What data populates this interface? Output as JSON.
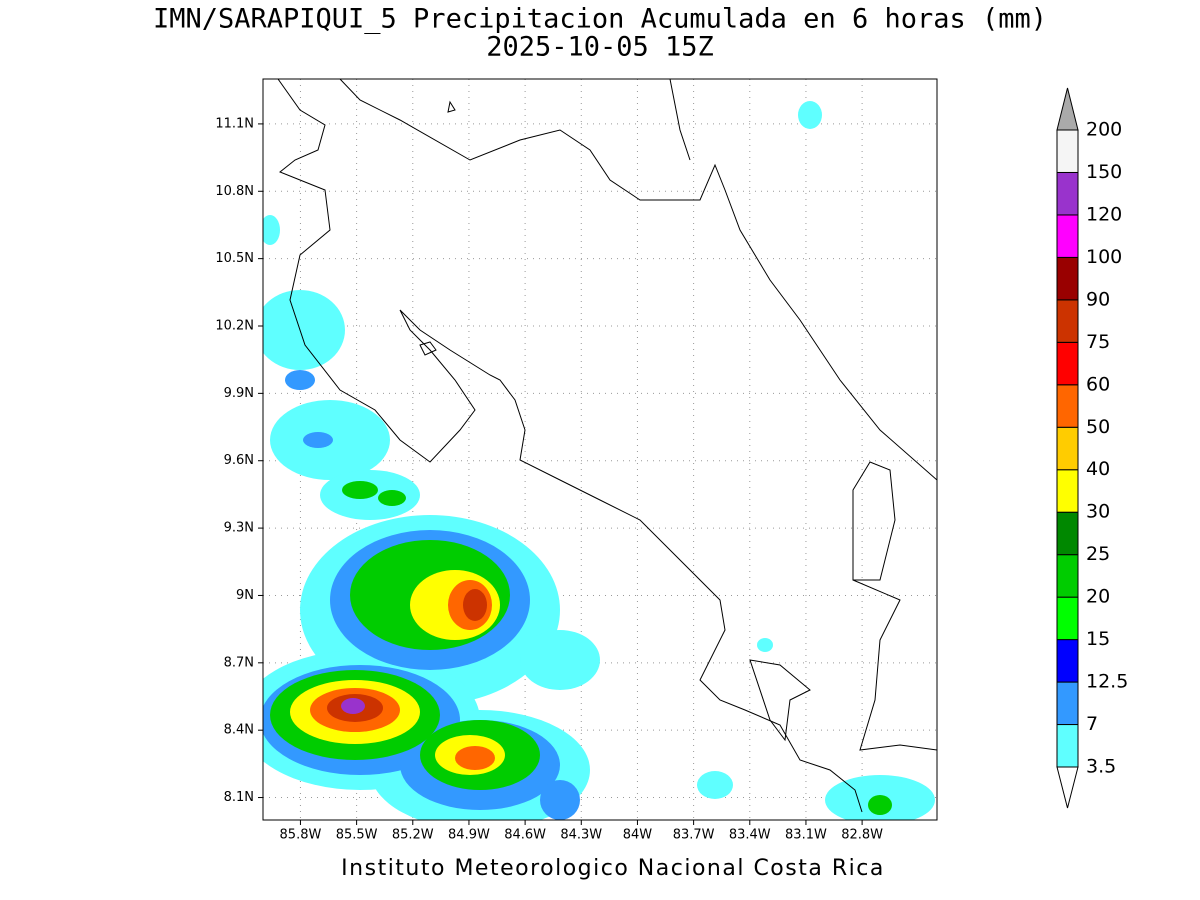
{
  "title": "IMN/SARAPIQUI_5 Precipitacion Acumulada en 6 horas (mm)",
  "subtitle": "2025-10-05 15Z",
  "footer": "Instituto Meteorologico Nacional Costa Rica",
  "map": {
    "xlim": [
      -86.0,
      -82.4
    ],
    "ylim": [
      8.0,
      11.3
    ],
    "grid": true,
    "lon_ticks": [
      {
        "value": -85.8,
        "label": "85.8W"
      },
      {
        "value": -85.5,
        "label": "85.5W"
      },
      {
        "value": -85.2,
        "label": "85.2W"
      },
      {
        "value": -84.9,
        "label": "84.9W"
      },
      {
        "value": -84.6,
        "label": "84.6W"
      },
      {
        "value": -84.3,
        "label": "84.3W"
      },
      {
        "value": -84.0,
        "label": "84W"
      },
      {
        "value": -83.7,
        "label": "83.7W"
      },
      {
        "value": -83.4,
        "label": "83.4W"
      },
      {
        "value": -83.1,
        "label": "83.1W"
      },
      {
        "value": -82.8,
        "label": "82.8W"
      }
    ],
    "lat_ticks": [
      {
        "value": 8.1,
        "label": "8.1N"
      },
      {
        "value": 8.4,
        "label": "8.4N"
      },
      {
        "value": 8.7,
        "label": "8.7N"
      },
      {
        "value": 9.0,
        "label": "9N"
      },
      {
        "value": 9.3,
        "label": "9.3N"
      },
      {
        "value": 9.6,
        "label": "9.6N"
      },
      {
        "value": 9.9,
        "label": "9.9N"
      },
      {
        "value": 10.2,
        "label": "10.2N"
      },
      {
        "value": 10.5,
        "label": "10.5N"
      },
      {
        "value": 10.8,
        "label": "10.8N"
      },
      {
        "value": 11.1,
        "label": "11.1N"
      }
    ]
  },
  "colorbar": {
    "levels": [
      3.5,
      7,
      12.5,
      15,
      20,
      25,
      30,
      40,
      50,
      60,
      75,
      90,
      100,
      120,
      150,
      200
    ],
    "colors": [
      "#ffffff",
      "#5fffff",
      "#3399ff",
      "#0000ff",
      "#00ff00",
      "#00cc00",
      "#008800",
      "#ffff00",
      "#ffcc00",
      "#ff6600",
      "#ff0000",
      "#cc3300",
      "#990000",
      "#ff00ff",
      "#9933cc",
      "#f5f5f5",
      "#aaaaaa"
    ]
  }
}
